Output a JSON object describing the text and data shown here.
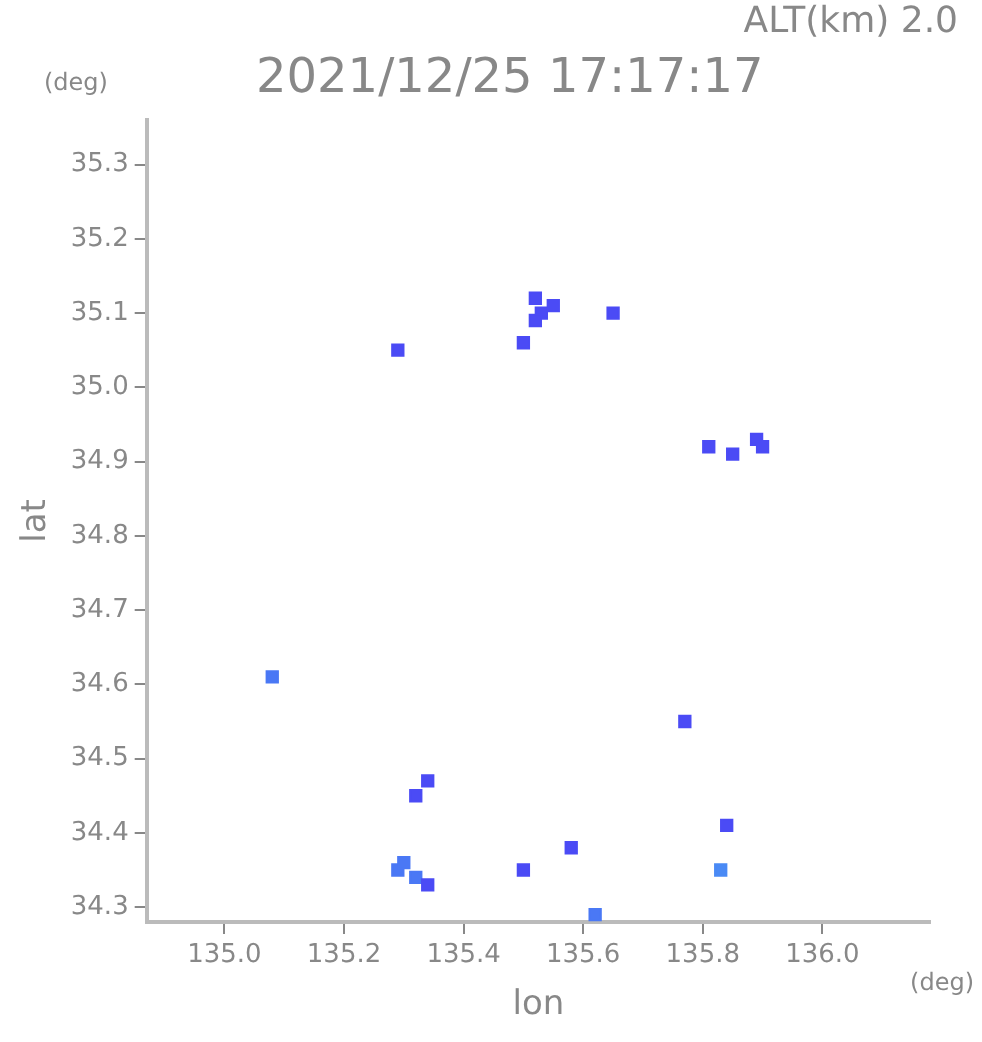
{
  "chart_data": {
    "type": "scatter",
    "title": "2021/12/25 17:17:17",
    "subtitle": "ALT(km) 2.0",
    "xlabel": "lon",
    "ylabel": "lat",
    "annotations": [
      "(deg)",
      "(deg)"
    ],
    "xlim": [
      134.87,
      136.18
    ],
    "ylim": [
      34.28,
      35.36
    ],
    "xticks": [
      {
        "value": 135,
        "label": "135.0"
      },
      {
        "value": 135.2,
        "label": "135.2"
      },
      {
        "value": 135.4,
        "label": "135.4"
      },
      {
        "value": 135.6,
        "label": "135.6"
      },
      {
        "value": 135.8,
        "label": "135.8"
      },
      {
        "value": 136,
        "label": "136.0"
      }
    ],
    "yticks": [
      {
        "value": 34.3,
        "label": "34.3"
      },
      {
        "value": 34.4,
        "label": "34.4"
      },
      {
        "value": 34.5,
        "label": "34.5"
      },
      {
        "value": 34.6,
        "label": "34.6"
      },
      {
        "value": 34.7,
        "label": "34.7"
      },
      {
        "value": 34.8,
        "label": "34.8"
      },
      {
        "value": 34.9,
        "label": "34.9"
      },
      {
        "value": 35,
        "label": "35.0"
      },
      {
        "value": 35.1,
        "label": "35.1"
      },
      {
        "value": 35.2,
        "label": "35.2"
      },
      {
        "value": 35.3,
        "label": "35.3"
      }
    ],
    "grid": false,
    "legend": false,
    "marker": "square",
    "x": [
      135.52,
      135.53,
      135.55,
      135.52,
      135.65,
      135.29,
      135.5,
      135.81,
      135.85,
      135.89,
      135.9,
      135.08,
      135.77,
      135.32,
      135.34,
      135.84,
      135.58,
      135.83,
      135.29,
      135.32,
      135.3,
      135.34,
      135.5,
      135.62
    ],
    "values": [
      35.12,
      35.1,
      35.11,
      35.09,
      35.1,
      35.05,
      35.06,
      34.92,
      34.91,
      34.93,
      34.92,
      34.61,
      34.55,
      34.45,
      34.47,
      34.41,
      34.38,
      34.35,
      34.35,
      34.34,
      34.36,
      34.33,
      34.35,
      34.29
    ],
    "colors": [
      "#4b4bf5",
      "#4b4bf5",
      "#4b4bf5",
      "#4b4bf5",
      "#4b4bf5",
      "#4b4bf5",
      "#4b4bf5",
      "#4b4bf5",
      "#4b4bf5",
      "#4b4bf5",
      "#4b4bf5",
      "#4a78f5",
      "#4b4bf5",
      "#4b4bf5",
      "#4b4bf5",
      "#4b4bf5",
      "#4b4bf5",
      "#4a8af5",
      "#4a78f5",
      "#4a78f5",
      "#4a78f5",
      "#4b4bf5",
      "#4b4bf5",
      "#4a78f5"
    ]
  }
}
